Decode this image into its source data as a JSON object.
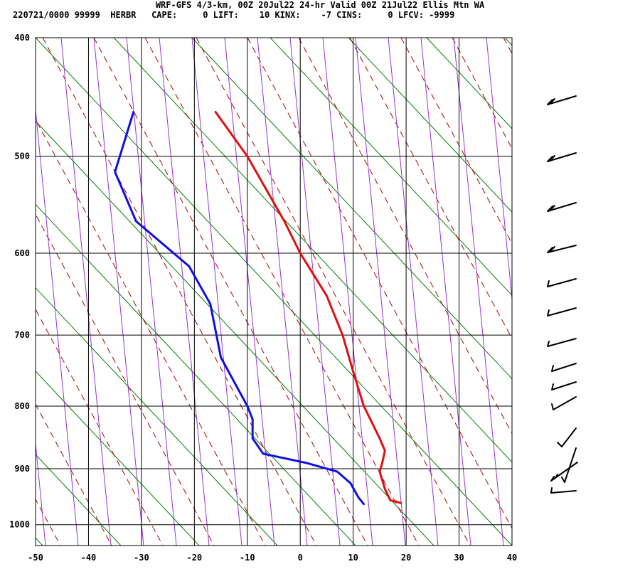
{
  "header": {
    "title": "WRF-GFS 4/3-km, 00Z 20Jul22 24-hr Valid 00Z 21Jul22 Ellis Mtn WA",
    "info": "220721/0000 99999  HERBR   CAPE:     0 LIFT:    10 KINX:    -7 CINS:     0 LFCV: -9999"
  },
  "chart_data": {
    "type": "line",
    "title": "WRF-GFS 4/3-km, 00Z 20Jul22 24-hr Valid 00Z 21Jul22 Ellis Mtn WA",
    "xlabel": "",
    "ylabel": "",
    "x_ticks": [
      -50,
      -40,
      -30,
      -20,
      -10,
      0,
      10,
      20,
      30,
      40
    ],
    "y_ticks": [
      400,
      500,
      600,
      700,
      800,
      900,
      1000
    ],
    "xlim": [
      -50,
      40
    ],
    "ylim": [
      1040,
      400
    ],
    "y_scale": "log",
    "grid": true,
    "series": [
      {
        "color": "#e01010",
        "points": [
          [
            -16,
            460
          ],
          [
            -10,
            500
          ],
          [
            -3,
            565
          ],
          [
            0,
            600
          ],
          [
            5,
            650
          ],
          [
            8,
            700
          ],
          [
            10,
            750
          ],
          [
            12,
            800
          ],
          [
            15,
            850
          ],
          [
            16,
            870
          ],
          [
            15.5,
            890
          ],
          [
            15,
            905
          ],
          [
            16,
            935
          ],
          [
            17,
            955
          ],
          [
            19,
            960
          ]
        ]
      },
      {
        "color": "#1010e0",
        "points": [
          [
            -31.5,
            460
          ],
          [
            -35,
            515
          ],
          [
            -31,
            565
          ],
          [
            -21,
            615
          ],
          [
            -17,
            660
          ],
          [
            -15,
            730
          ],
          [
            -10,
            800
          ],
          [
            -9,
            820
          ],
          [
            -9,
            850
          ],
          [
            -7,
            875
          ],
          [
            1,
            890
          ],
          [
            7,
            905
          ],
          [
            9.5,
            925
          ],
          [
            11,
            950
          ],
          [
            12,
            962
          ]
        ]
      }
    ],
    "colors": {
      "isotherm": "#000000",
      "isobar": "#000000",
      "dry_adiabat": "#008000",
      "moist_adiabat": "#b00000",
      "mixing_ratio": "#9933cc",
      "temperature": "#e01010",
      "dewpoint": "#1010e0",
      "wind_barb": "#000000"
    }
  }
}
